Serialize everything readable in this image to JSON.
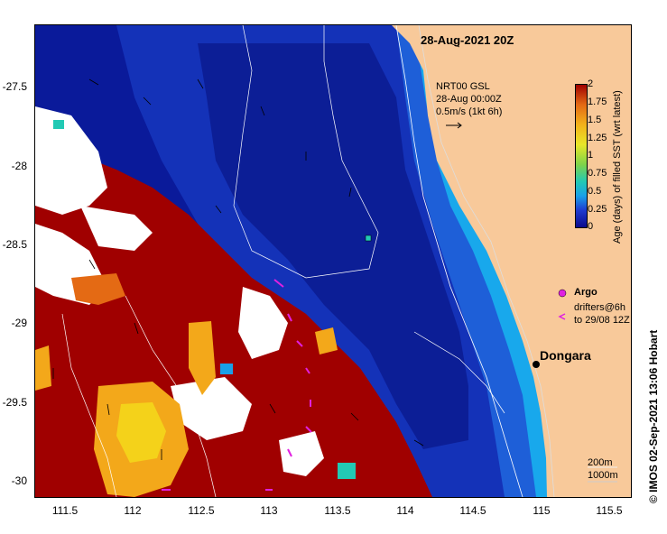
{
  "title": "28-Aug-2021 20Z",
  "product": {
    "name": "NRT00 GSL",
    "time": "28-Aug 00:00Z",
    "scale": "0.5m/s (1kt 6h)"
  },
  "colorbar": {
    "title": "Age (days) of filled SST (wrt latest)",
    "ticks": [
      "2",
      "1.75",
      "1.5",
      "1.25",
      "1",
      "0.75",
      "0.5",
      "0.25",
      "0"
    ],
    "colors": {
      "c0": "#0a0a8c",
      "c025": "#1f3bd0",
      "c05": "#1aa0e8",
      "c075": "#22c9b4",
      "c1": "#7ed34a",
      "c125": "#e8e628",
      "c15": "#f3b21a",
      "c175": "#e46a14",
      "c2": "#a00000"
    }
  },
  "legend": {
    "argo": "Argo",
    "drifters_line1": "drifters@6h",
    "drifters_line2": "to 29/08 12Z"
  },
  "place": {
    "name": "Dongara"
  },
  "contours": {
    "line1": "200m",
    "line2": "1000m"
  },
  "credit": "© IMOS 02-Sep-2021 13:06 Hobart",
  "axes": {
    "y_ticks": [
      "-27.5",
      "-28",
      "-28.5",
      "-29",
      "-29.5",
      "-30"
    ],
    "x_ticks": [
      "111.5",
      "112",
      "112.5",
      "113",
      "113.5",
      "114",
      "114.5",
      "115",
      "115.5"
    ]
  },
  "palette": {
    "land": "#f8c99a",
    "cloud": "#ffffff",
    "deep": "#0a1a9a",
    "mid": "#1536c4",
    "shelf": "#1e6fe0",
    "coast": "#15a6ea",
    "red": "#a00000",
    "orange": "#f3a81a",
    "yellow": "#f4d21a",
    "magenta": "#e020e0"
  }
}
